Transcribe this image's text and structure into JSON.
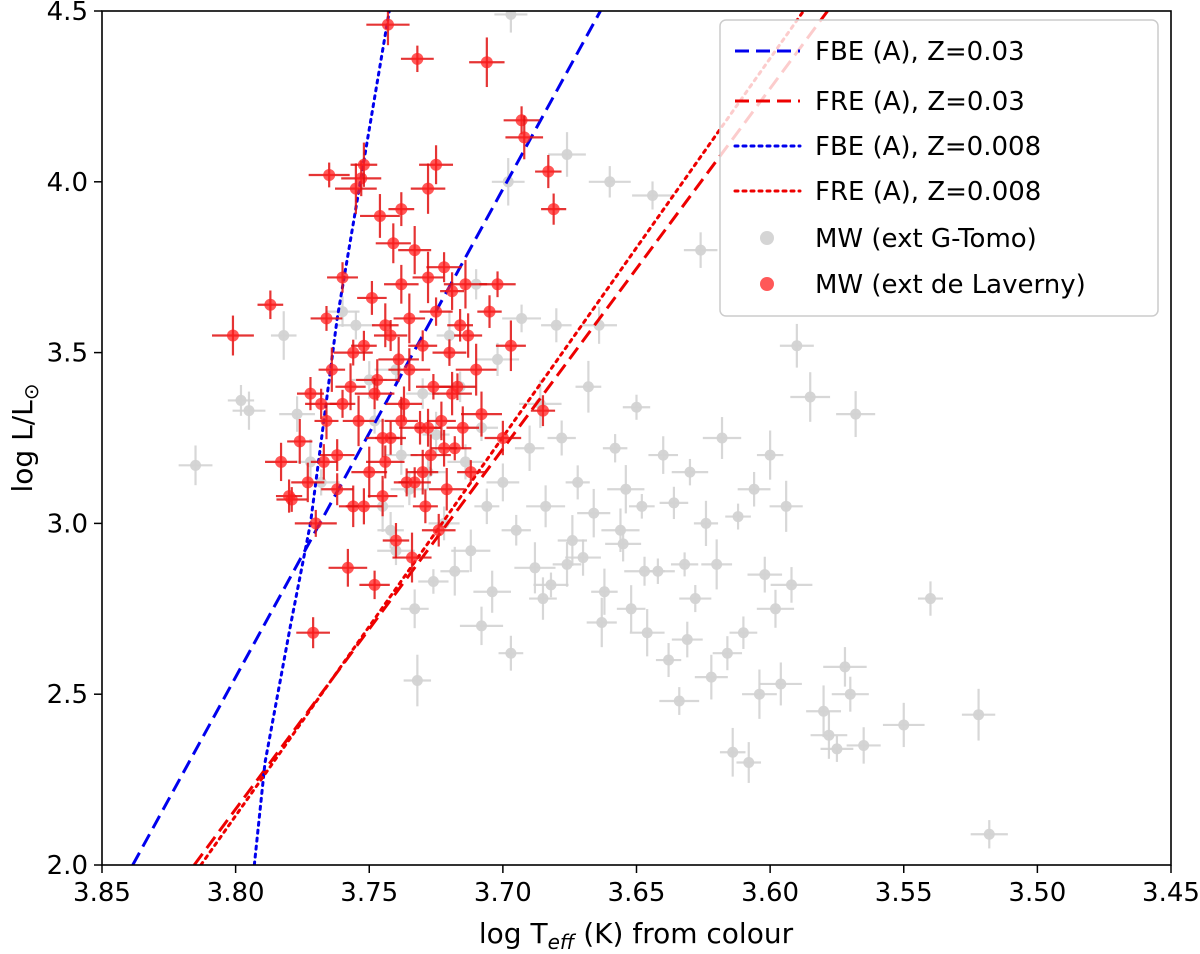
{
  "chart_data": {
    "type": "scatter",
    "xlabel": "log T_eff (K) from colour",
    "xlabel_main": "log T",
    "xlabel_sub": "eff",
    "xlabel_rest": " (K) from colour",
    "ylabel": "log L/L☉",
    "ylabel_main": "log L/L",
    "ylabel_sub": "⊙",
    "xlim": [
      3.85,
      3.45
    ],
    "ylim": [
      2.0,
      4.5
    ],
    "xticks": [
      "3.85",
      "3.80",
      "3.75",
      "3.70",
      "3.65",
      "3.60",
      "3.55",
      "3.50",
      "3.45"
    ],
    "xtick_values": [
      3.85,
      3.8,
      3.75,
      3.7,
      3.65,
      3.6,
      3.55,
      3.5,
      3.45
    ],
    "yticks": [
      "2.0",
      "2.5",
      "3.0",
      "3.5",
      "4.0",
      "4.5"
    ],
    "ytick_values": [
      2.0,
      2.5,
      3.0,
      3.5,
      4.0,
      4.5
    ],
    "legend_position": "top-right",
    "colors": {
      "blue": "#0000ee",
      "red": "#ee0000",
      "grey": "#d3d3d3",
      "red_point": "#ff2020"
    },
    "lines": [
      {
        "name": "FBE (A), Z=0.03",
        "style": "dashed",
        "color": "#0000ee",
        "x": [
          3.8385,
          3.6635
        ],
        "y": [
          2.0,
          4.5
        ]
      },
      {
        "name": "FRE (A), Z=0.03",
        "style": "dashed",
        "color": "#ee0000",
        "x": [
          3.8155,
          3.5785
        ],
        "y": [
          2.0,
          4.5
        ]
      },
      {
        "name": "FBE (A), Z=0.008",
        "style": "dotted",
        "color": "#0000ee",
        "x": [
          3.793,
          3.789,
          3.7795,
          3.772,
          3.762,
          3.7425
        ],
        "y": [
          2.0,
          2.3,
          2.7,
          3.0,
          3.6,
          4.5
        ]
      },
      {
        "name": "FRE (A), Z=0.008",
        "style": "dotted",
        "color": "#ee0000",
        "x": [
          3.813,
          3.5875
        ],
        "y": [
          2.0,
          4.5
        ]
      }
    ],
    "series": [
      {
        "name": "MW (ext G-Tomo)",
        "color": "#d3d3d3",
        "points": [
          [
            3.815,
            3.17
          ],
          [
            3.798,
            3.36
          ],
          [
            3.795,
            3.33
          ],
          [
            3.782,
            3.55
          ],
          [
            3.777,
            3.32
          ],
          [
            3.772,
            3.18
          ],
          [
            3.768,
            3.12
          ],
          [
            3.76,
            3.62
          ],
          [
            3.755,
            3.58
          ],
          [
            3.75,
            3.42
          ],
          [
            3.748,
            3.3
          ],
          [
            3.745,
            3.05
          ],
          [
            3.742,
            2.98
          ],
          [
            3.74,
            3.45
          ],
          [
            3.738,
            3.2
          ],
          [
            3.735,
            3.1
          ],
          [
            3.732,
            2.54
          ],
          [
            3.73,
            3.38
          ],
          [
            3.728,
            3.15
          ],
          [
            3.725,
            3.26
          ],
          [
            3.722,
            3.0
          ],
          [
            3.72,
            3.55
          ],
          [
            3.718,
            2.86
          ],
          [
            3.716,
            3.4
          ],
          [
            3.714,
            3.18
          ],
          [
            3.712,
            2.92
          ],
          [
            3.71,
            3.7
          ],
          [
            3.708,
            3.28
          ],
          [
            3.706,
            3.05
          ],
          [
            3.704,
            2.8
          ],
          [
            3.702,
            3.48
          ],
          [
            3.7,
            3.12
          ],
          [
            3.698,
            4.0
          ],
          [
            3.697,
            4.49
          ],
          [
            3.695,
            2.98
          ],
          [
            3.693,
            3.6
          ],
          [
            3.69,
            3.22
          ],
          [
            3.688,
            2.87
          ],
          [
            3.686,
            3.35
          ],
          [
            3.684,
            3.05
          ],
          [
            3.682,
            2.82
          ],
          [
            3.68,
            3.58
          ],
          [
            3.678,
            3.25
          ],
          [
            3.676,
            4.08
          ],
          [
            3.674,
            2.95
          ],
          [
            3.672,
            3.12
          ],
          [
            3.67,
            2.9
          ],
          [
            3.668,
            3.4
          ],
          [
            3.666,
            3.03
          ],
          [
            3.664,
            3.58
          ],
          [
            3.662,
            2.8
          ],
          [
            3.66,
            4.0
          ],
          [
            3.658,
            3.22
          ],
          [
            3.656,
            2.98
          ],
          [
            3.654,
            3.1
          ],
          [
            3.652,
            2.75
          ],
          [
            3.65,
            3.34
          ],
          [
            3.648,
            3.05
          ],
          [
            3.646,
            2.68
          ],
          [
            3.644,
            3.96
          ],
          [
            3.642,
            2.86
          ],
          [
            3.64,
            3.2
          ],
          [
            3.638,
            2.6
          ],
          [
            3.636,
            3.06
          ],
          [
            3.634,
            2.48
          ],
          [
            3.632,
            2.88
          ],
          [
            3.63,
            3.15
          ],
          [
            3.628,
            2.78
          ],
          [
            3.626,
            3.8
          ],
          [
            3.624,
            3.0
          ],
          [
            3.622,
            2.55
          ],
          [
            3.62,
            2.88
          ],
          [
            3.618,
            3.25
          ],
          [
            3.616,
            2.62
          ],
          [
            3.614,
            2.33
          ],
          [
            3.612,
            3.02
          ],
          [
            3.61,
            2.68
          ],
          [
            3.608,
            2.3
          ],
          [
            3.606,
            3.1
          ],
          [
            3.604,
            2.5
          ],
          [
            3.602,
            2.85
          ],
          [
            3.6,
            3.2
          ],
          [
            3.598,
            2.75
          ],
          [
            3.596,
            2.53
          ],
          [
            3.594,
            3.05
          ],
          [
            3.592,
            2.82
          ],
          [
            3.59,
            3.52
          ],
          [
            3.585,
            3.37
          ],
          [
            3.58,
            2.45
          ],
          [
            3.578,
            2.38
          ],
          [
            3.575,
            2.34
          ],
          [
            3.572,
            2.58
          ],
          [
            3.57,
            2.5
          ],
          [
            3.568,
            3.32
          ],
          [
            3.565,
            2.35
          ],
          [
            3.55,
            2.41
          ],
          [
            3.54,
            2.78
          ],
          [
            3.522,
            2.44
          ],
          [
            3.518,
            2.09
          ],
          [
            3.74,
            2.92
          ],
          [
            3.733,
            2.75
          ],
          [
            3.726,
            2.83
          ],
          [
            3.708,
            2.7
          ],
          [
            3.697,
            2.62
          ],
          [
            3.685,
            2.78
          ],
          [
            3.676,
            2.88
          ],
          [
            3.663,
            2.71
          ],
          [
            3.655,
            2.94
          ],
          [
            3.647,
            2.86
          ],
          [
            3.631,
            2.66
          ]
        ]
      },
      {
        "name": "MW (ext de Laverny)",
        "color": "#ff2020",
        "points": [
          [
            3.801,
            3.55
          ],
          [
            3.787,
            3.64
          ],
          [
            3.771,
            2.68
          ],
          [
            3.783,
            3.18
          ],
          [
            3.779,
            3.07
          ],
          [
            3.776,
            3.24
          ],
          [
            3.773,
            3.12
          ],
          [
            3.77,
            3.0
          ],
          [
            3.768,
            3.35
          ],
          [
            3.766,
            3.6
          ],
          [
            3.764,
            3.45
          ],
          [
            3.765,
            4.02
          ],
          [
            3.762,
            3.2
          ],
          [
            3.76,
            3.72
          ],
          [
            3.758,
            2.87
          ],
          [
            3.756,
            3.05
          ],
          [
            3.755,
            3.98
          ],
          [
            3.754,
            3.3
          ],
          [
            3.753,
            4.01
          ],
          [
            3.752,
            3.52
          ],
          [
            3.752,
            4.05
          ],
          [
            3.75,
            3.15
          ],
          [
            3.749,
            3.66
          ],
          [
            3.748,
            2.82
          ],
          [
            3.747,
            3.42
          ],
          [
            3.746,
            3.9
          ],
          [
            3.745,
            3.08
          ],
          [
            3.744,
            3.58
          ],
          [
            3.743,
            4.46
          ],
          [
            3.742,
            3.25
          ],
          [
            3.741,
            3.82
          ],
          [
            3.74,
            2.95
          ],
          [
            3.739,
            3.48
          ],
          [
            3.738,
            3.7
          ],
          [
            3.737,
            3.35
          ],
          [
            3.736,
            3.12
          ],
          [
            3.735,
            3.6
          ],
          [
            3.734,
            2.9
          ],
          [
            3.733,
            3.8
          ],
          [
            3.732,
            4.36
          ],
          [
            3.731,
            3.28
          ],
          [
            3.73,
            3.52
          ],
          [
            3.729,
            3.05
          ],
          [
            3.728,
            3.72
          ],
          [
            3.727,
            3.2
          ],
          [
            3.726,
            3.4
          ],
          [
            3.725,
            3.62
          ],
          [
            3.724,
            2.98
          ],
          [
            3.723,
            3.3
          ],
          [
            3.722,
            3.75
          ],
          [
            3.721,
            3.1
          ],
          [
            3.72,
            3.5
          ],
          [
            3.719,
            3.68
          ],
          [
            3.718,
            3.22
          ],
          [
            3.717,
            3.4
          ],
          [
            3.716,
            3.58
          ],
          [
            3.715,
            3.28
          ],
          [
            3.714,
            3.7
          ],
          [
            3.712,
            3.15
          ],
          [
            3.71,
            3.45
          ],
          [
            3.708,
            3.32
          ],
          [
            3.706,
            4.35
          ],
          [
            3.705,
            3.62
          ],
          [
            3.702,
            3.7
          ],
          [
            3.7,
            3.25
          ],
          [
            3.697,
            3.52
          ],
          [
            3.693,
            4.18
          ],
          [
            3.692,
            4.13
          ],
          [
            3.685,
            3.33
          ],
          [
            3.683,
            4.03
          ],
          [
            3.681,
            3.92
          ],
          [
            3.725,
            4.05
          ],
          [
            3.728,
            3.98
          ],
          [
            3.738,
            3.92
          ],
          [
            3.76,
            3.35
          ],
          [
            3.772,
            3.38
          ],
          [
            3.78,
            3.08
          ],
          [
            3.767,
            3.18
          ],
          [
            3.757,
            3.4
          ],
          [
            3.745,
            3.25
          ],
          [
            3.735,
            3.45
          ],
          [
            3.73,
            3.15
          ],
          [
            3.742,
            3.55
          ],
          [
            3.748,
            3.38
          ],
          [
            3.752,
            3.05
          ],
          [
            3.738,
            3.3
          ],
          [
            3.728,
            3.28
          ],
          [
            3.733,
            3.12
          ],
          [
            3.719,
            3.38
          ],
          [
            3.713,
            3.55
          ],
          [
            3.722,
            3.22
          ],
          [
            3.756,
            3.5
          ],
          [
            3.762,
            3.1
          ],
          [
            3.766,
            3.3
          ],
          [
            3.744,
            3.18
          ]
        ]
      }
    ]
  }
}
